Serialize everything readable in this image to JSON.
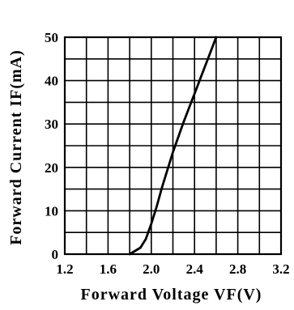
{
  "chart_data": {
    "type": "line",
    "x_tick_labels": [
      "1.2",
      "1.6",
      "2.0",
      "2.4",
      "2.8",
      "3.2"
    ],
    "y_tick_labels": [
      "0",
      "10",
      "20",
      "30",
      "40",
      "50"
    ],
    "xlabel": "Forward Voltage VF(V)",
    "ylabel": "Forward Current IF(mA)",
    "xlim": [
      1.2,
      3.2
    ],
    "ylim": [
      0,
      50
    ],
    "grid": true,
    "x_minor_step": 0.2,
    "y_minor_step": 5,
    "series": [
      {
        "x": [
          1.8,
          1.9,
          1.95,
          2.0,
          2.05,
          2.1,
          2.2,
          2.3,
          2.4,
          2.5,
          2.6
        ],
        "y": [
          0,
          1.5,
          3.5,
          7,
          11,
          15.5,
          23.5,
          30.5,
          37,
          43.5,
          50
        ]
      }
    ],
    "colors": {
      "line": "#000000",
      "grid": "#000000",
      "background": "#ffffff"
    }
  }
}
